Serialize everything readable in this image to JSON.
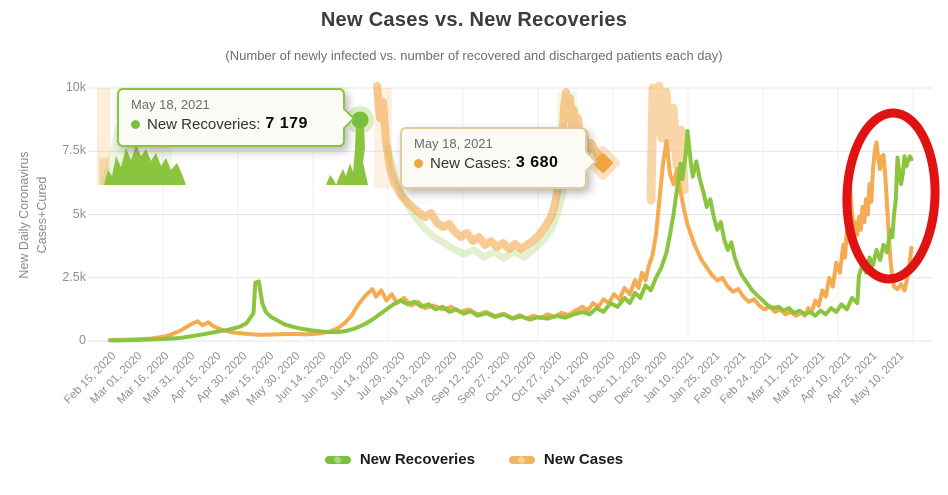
{
  "title": "New Cases vs. New Recoveries",
  "subtitle": "(Number of newly infected vs. number of recovered and discharged patients each day)",
  "colors": {
    "recoveries": "#7cbf3f",
    "recoveries_line": "#8bc53f",
    "cases": "#f0a541",
    "cases_line": "#f5ab52",
    "annotation_red": "#e01212",
    "grid": "#e4e4e4"
  },
  "axis": {
    "ylabel_line1": "New Daily Coronavirus",
    "ylabel_line2": "Cases+Cured"
  },
  "tooltips": [
    {
      "date": "May 18, 2021",
      "label": "New Recoveries",
      "separator": ":",
      "value": "7 179"
    },
    {
      "date": "May 18, 2021",
      "label": "New Cases",
      "separator": ":",
      "value": "3 680"
    }
  ],
  "legend": [
    {
      "key": "recoveries",
      "label": "New Recoveries",
      "color": "#7cbf3f"
    },
    {
      "key": "cases",
      "label": "New Cases",
      "color": "#f2b45c"
    }
  ],
  "chart_data": {
    "type": "line",
    "title": "New Cases vs. New Recoveries",
    "subtitle": "(Number of newly infected vs. number of recovered and discharged patients each day)",
    "xlabel": "",
    "ylabel": "New Daily Coronavirus Cases+Cured",
    "ylim": [
      0,
      10000
    ],
    "grid": true,
    "legend_position": "bottom",
    "x_unit": "days since Feb 15, 2020 (ticks every 15 days)",
    "y_ticks": [
      {
        "label": "10k",
        "value": 10000
      },
      {
        "label": "7.5k",
        "value": 7500
      },
      {
        "label": "5k",
        "value": 5000
      },
      {
        "label": "2.5k",
        "value": 2500
      },
      {
        "label": "0",
        "value": 0
      }
    ],
    "x_ticks": [
      "Feb 15, 2020",
      "Mar 01, 2020",
      "Mar 16, 2020",
      "Mar 31, 2020",
      "Apr 15, 2020",
      "Apr 30, 2020",
      "May 15, 2020",
      "May 30, 2020",
      "Jun 14, 2020",
      "Jun 29, 2020",
      "Jul 14, 2020",
      "Jul 29, 2020",
      "Aug 13, 2020",
      "Aug 28, 2020",
      "Sep 12, 2020",
      "Sep 27, 2020",
      "Oct 12, 2020",
      "Oct 27, 2020",
      "Nov 11, 2020",
      "Nov 26, 2020",
      "Dec 11, 2020",
      "Dec 26, 2020",
      "Jan 10, 2021",
      "Jan 25, 2021",
      "Feb 09, 2021",
      "Feb 24, 2021",
      "Mar 11, 2021",
      "Mar 26, 2021",
      "Apr 10, 2021",
      "Apr 25, 2021",
      "May 10, 2021"
    ],
    "annotation": "Hand-drawn red ellipse highlighting the final mid-May 2021 spike (cases dropping to 3 680, recoveries rising to 7 179 on May 18, 2021)",
    "highlighted_points": [
      {
        "series": "New Recoveries",
        "date": "May 18, 2021",
        "value": 7179
      },
      {
        "series": "New Cases",
        "date": "May 18, 2021",
        "value": 3680
      }
    ],
    "series": [
      {
        "key": "cases",
        "name": "New Cases",
        "color": "#f5ab52",
        "points": [
          [
            0,
            40
          ],
          [
            8,
            50
          ],
          [
            16,
            70
          ],
          [
            24,
            100
          ],
          [
            32,
            180
          ],
          [
            40,
            400
          ],
          [
            46,
            650
          ],
          [
            50,
            780
          ],
          [
            53,
            620
          ],
          [
            56,
            740
          ],
          [
            60,
            550
          ],
          [
            65,
            420
          ],
          [
            70,
            340
          ],
          [
            78,
            280
          ],
          [
            86,
            240
          ],
          [
            95,
            260
          ],
          [
            104,
            280
          ],
          [
            112,
            260
          ],
          [
            120,
            300
          ],
          [
            126,
            380
          ],
          [
            130,
            500
          ],
          [
            134,
            700
          ],
          [
            138,
            1000
          ],
          [
            142,
            1450
          ],
          [
            146,
            1800
          ],
          [
            150,
            2050
          ],
          [
            152,
            1750
          ],
          [
            155,
            2000
          ],
          [
            158,
            1600
          ],
          [
            161,
            1850
          ],
          [
            164,
            1500
          ],
          [
            168,
            1700
          ],
          [
            172,
            1400
          ],
          [
            176,
            1550
          ],
          [
            180,
            1300
          ],
          [
            185,
            1400
          ],
          [
            190,
            1250
          ],
          [
            195,
            1350
          ],
          [
            200,
            1150
          ],
          [
            205,
            1250
          ],
          [
            210,
            1050
          ],
          [
            215,
            1150
          ],
          [
            220,
            980
          ],
          [
            225,
            1080
          ],
          [
            230,
            900
          ],
          [
            234,
            1020
          ],
          [
            238,
            880
          ],
          [
            242,
            1000
          ],
          [
            246,
            900
          ],
          [
            250,
            1050
          ],
          [
            254,
            950
          ],
          [
            258,
            1120
          ],
          [
            262,
            1020
          ],
          [
            266,
            1200
          ],
          [
            270,
            1350
          ],
          [
            273,
            1200
          ],
          [
            276,
            1500
          ],
          [
            279,
            1350
          ],
          [
            282,
            1650
          ],
          [
            285,
            1500
          ],
          [
            288,
            1850
          ],
          [
            291,
            1650
          ],
          [
            294,
            2100
          ],
          [
            297,
            1850
          ],
          [
            300,
            2400
          ],
          [
            302,
            2100
          ],
          [
            304,
            2700
          ],
          [
            306,
            2400
          ],
          [
            308,
            3000
          ],
          [
            310,
            3400
          ],
          [
            312,
            4200
          ],
          [
            314,
            5600
          ],
          [
            316,
            7000
          ],
          [
            318,
            7900
          ],
          [
            320,
            6600
          ],
          [
            322,
            6200
          ],
          [
            324,
            6800
          ],
          [
            326,
            5900
          ],
          [
            328,
            5200
          ],
          [
            330,
            4600
          ],
          [
            332,
            4200
          ],
          [
            334,
            3800
          ],
          [
            336,
            3500
          ],
          [
            338,
            3200
          ],
          [
            341,
            2900
          ],
          [
            344,
            2600
          ],
          [
            347,
            2400
          ],
          [
            350,
            2500
          ],
          [
            353,
            2150
          ],
          [
            356,
            1950
          ],
          [
            359,
            2050
          ],
          [
            362,
            1750
          ],
          [
            365,
            1550
          ],
          [
            368,
            1650
          ],
          [
            371,
            1400
          ],
          [
            374,
            1250
          ],
          [
            377,
            1350
          ],
          [
            380,
            1150
          ],
          [
            383,
            1250
          ],
          [
            386,
            1050
          ],
          [
            389,
            1150
          ],
          [
            392,
            1000
          ],
          [
            395,
            1120
          ],
          [
            397,
            1000
          ],
          [
            399,
            1300
          ],
          [
            401,
            1150
          ],
          [
            403,
            1600
          ],
          [
            405,
            1400
          ],
          [
            407,
            2000
          ],
          [
            409,
            1750
          ],
          [
            411,
            2500
          ],
          [
            413,
            2150
          ],
          [
            415,
            3100
          ],
          [
            417,
            2700
          ],
          [
            419,
            3800
          ],
          [
            420,
            3300
          ],
          [
            421,
            4300
          ],
          [
            422,
            5000
          ],
          [
            423,
            6000
          ],
          [
            424,
            5000
          ],
          [
            425,
            4300
          ],
          [
            426,
            4700
          ],
          [
            427,
            4200
          ],
          [
            428,
            4900
          ],
          [
            429,
            4400
          ],
          [
            430,
            5300
          ],
          [
            431,
            4700
          ],
          [
            432,
            5600
          ],
          [
            433,
            5000
          ],
          [
            434,
            6200
          ],
          [
            435,
            5500
          ],
          [
            436,
            6800
          ],
          [
            437,
            7500
          ],
          [
            438,
            7850
          ],
          [
            439,
            7200
          ],
          [
            440,
            6800
          ],
          [
            441,
            7300
          ],
          [
            442,
            7350
          ],
          [
            443,
            6500
          ],
          [
            444,
            5400
          ],
          [
            445,
            4200
          ],
          [
            446,
            3200
          ],
          [
            447,
            2500
          ],
          [
            448,
            2150
          ],
          [
            450,
            2050
          ],
          [
            452,
            2250
          ],
          [
            454,
            2000
          ],
          [
            456,
            2600
          ],
          [
            458,
            3680
          ]
        ]
      },
      {
        "key": "recoveries",
        "name": "New Recoveries",
        "color": "#8bc53f",
        "points": [
          [
            0,
            20
          ],
          [
            10,
            30
          ],
          [
            20,
            50
          ],
          [
            30,
            80
          ],
          [
            40,
            120
          ],
          [
            48,
            200
          ],
          [
            56,
            300
          ],
          [
            62,
            380
          ],
          [
            68,
            450
          ],
          [
            74,
            560
          ],
          [
            78,
            700
          ],
          [
            80,
            900
          ],
          [
            82,
            1100
          ],
          [
            83,
            2300
          ],
          [
            85,
            2350
          ],
          [
            87,
            1500
          ],
          [
            89,
            1150
          ],
          [
            92,
            950
          ],
          [
            96,
            800
          ],
          [
            100,
            650
          ],
          [
            105,
            550
          ],
          [
            110,
            480
          ],
          [
            115,
            420
          ],
          [
            120,
            380
          ],
          [
            125,
            350
          ],
          [
            130,
            350
          ],
          [
            135,
            400
          ],
          [
            140,
            500
          ],
          [
            145,
            650
          ],
          [
            150,
            850
          ],
          [
            154,
            1050
          ],
          [
            158,
            1250
          ],
          [
            162,
            1450
          ],
          [
            166,
            1600
          ],
          [
            170,
            1450
          ],
          [
            174,
            1550
          ],
          [
            178,
            1350
          ],
          [
            182,
            1450
          ],
          [
            186,
            1250
          ],
          [
            190,
            1350
          ],
          [
            194,
            1150
          ],
          [
            198,
            1250
          ],
          [
            202,
            1080
          ],
          [
            206,
            1180
          ],
          [
            210,
            1000
          ],
          [
            215,
            1100
          ],
          [
            220,
            950
          ],
          [
            225,
            1050
          ],
          [
            230,
            880
          ],
          [
            235,
            980
          ],
          [
            240,
            850
          ],
          [
            245,
            950
          ],
          [
            250,
            880
          ],
          [
            255,
            1000
          ],
          [
            260,
            920
          ],
          [
            265,
            1050
          ],
          [
            270,
            1150
          ],
          [
            274,
            1050
          ],
          [
            278,
            1300
          ],
          [
            282,
            1150
          ],
          [
            286,
            1500
          ],
          [
            290,
            1350
          ],
          [
            294,
            1700
          ],
          [
            297,
            1500
          ],
          [
            300,
            1900
          ],
          [
            303,
            1700
          ],
          [
            306,
            2200
          ],
          [
            309,
            2000
          ],
          [
            312,
            2500
          ],
          [
            315,
            2900
          ],
          [
            318,
            3500
          ],
          [
            320,
            4200
          ],
          [
            322,
            5000
          ],
          [
            324,
            6000
          ],
          [
            326,
            7000
          ],
          [
            327,
            6400
          ],
          [
            329,
            7400
          ],
          [
            330,
            8300
          ],
          [
            332,
            7000
          ],
          [
            333,
            6500
          ],
          [
            335,
            7100
          ],
          [
            337,
            6400
          ],
          [
            339,
            5900
          ],
          [
            341,
            5300
          ],
          [
            343,
            5600
          ],
          [
            345,
            4900
          ],
          [
            347,
            4400
          ],
          [
            349,
            4700
          ],
          [
            351,
            4000
          ],
          [
            353,
            3600
          ],
          [
            355,
            3900
          ],
          [
            357,
            3300
          ],
          [
            359,
            2900
          ],
          [
            361,
            2600
          ],
          [
            364,
            2300
          ],
          [
            367,
            2000
          ],
          [
            370,
            1800
          ],
          [
            373,
            1600
          ],
          [
            376,
            1400
          ],
          [
            379,
            1300
          ],
          [
            382,
            1350
          ],
          [
            385,
            1200
          ],
          [
            388,
            1300
          ],
          [
            391,
            1100
          ],
          [
            394,
            1200
          ],
          [
            397,
            1050
          ],
          [
            400,
            1150
          ],
          [
            403,
            1000
          ],
          [
            406,
            1200
          ],
          [
            409,
            1050
          ],
          [
            412,
            1300
          ],
          [
            415,
            1150
          ],
          [
            418,
            1450
          ],
          [
            421,
            1250
          ],
          [
            424,
            1700
          ],
          [
            427,
            1500
          ],
          [
            428,
            2600
          ],
          [
            430,
            3000
          ],
          [
            432,
            2700
          ],
          [
            434,
            3300
          ],
          [
            436,
            3000
          ],
          [
            438,
            3600
          ],
          [
            440,
            3200
          ],
          [
            442,
            3800
          ],
          [
            444,
            3500
          ],
          [
            445,
            4000
          ],
          [
            446,
            4400
          ],
          [
            447,
            4100
          ],
          [
            448,
            5000
          ],
          [
            449,
            5600
          ],
          [
            450,
            7250
          ],
          [
            451,
            6700
          ],
          [
            452,
            6200
          ],
          [
            453,
            6600
          ],
          [
            454,
            7300
          ],
          [
            455,
            6900
          ],
          [
            456,
            7100
          ],
          [
            457,
            7300
          ],
          [
            458,
            7180
          ]
        ]
      }
    ]
  }
}
